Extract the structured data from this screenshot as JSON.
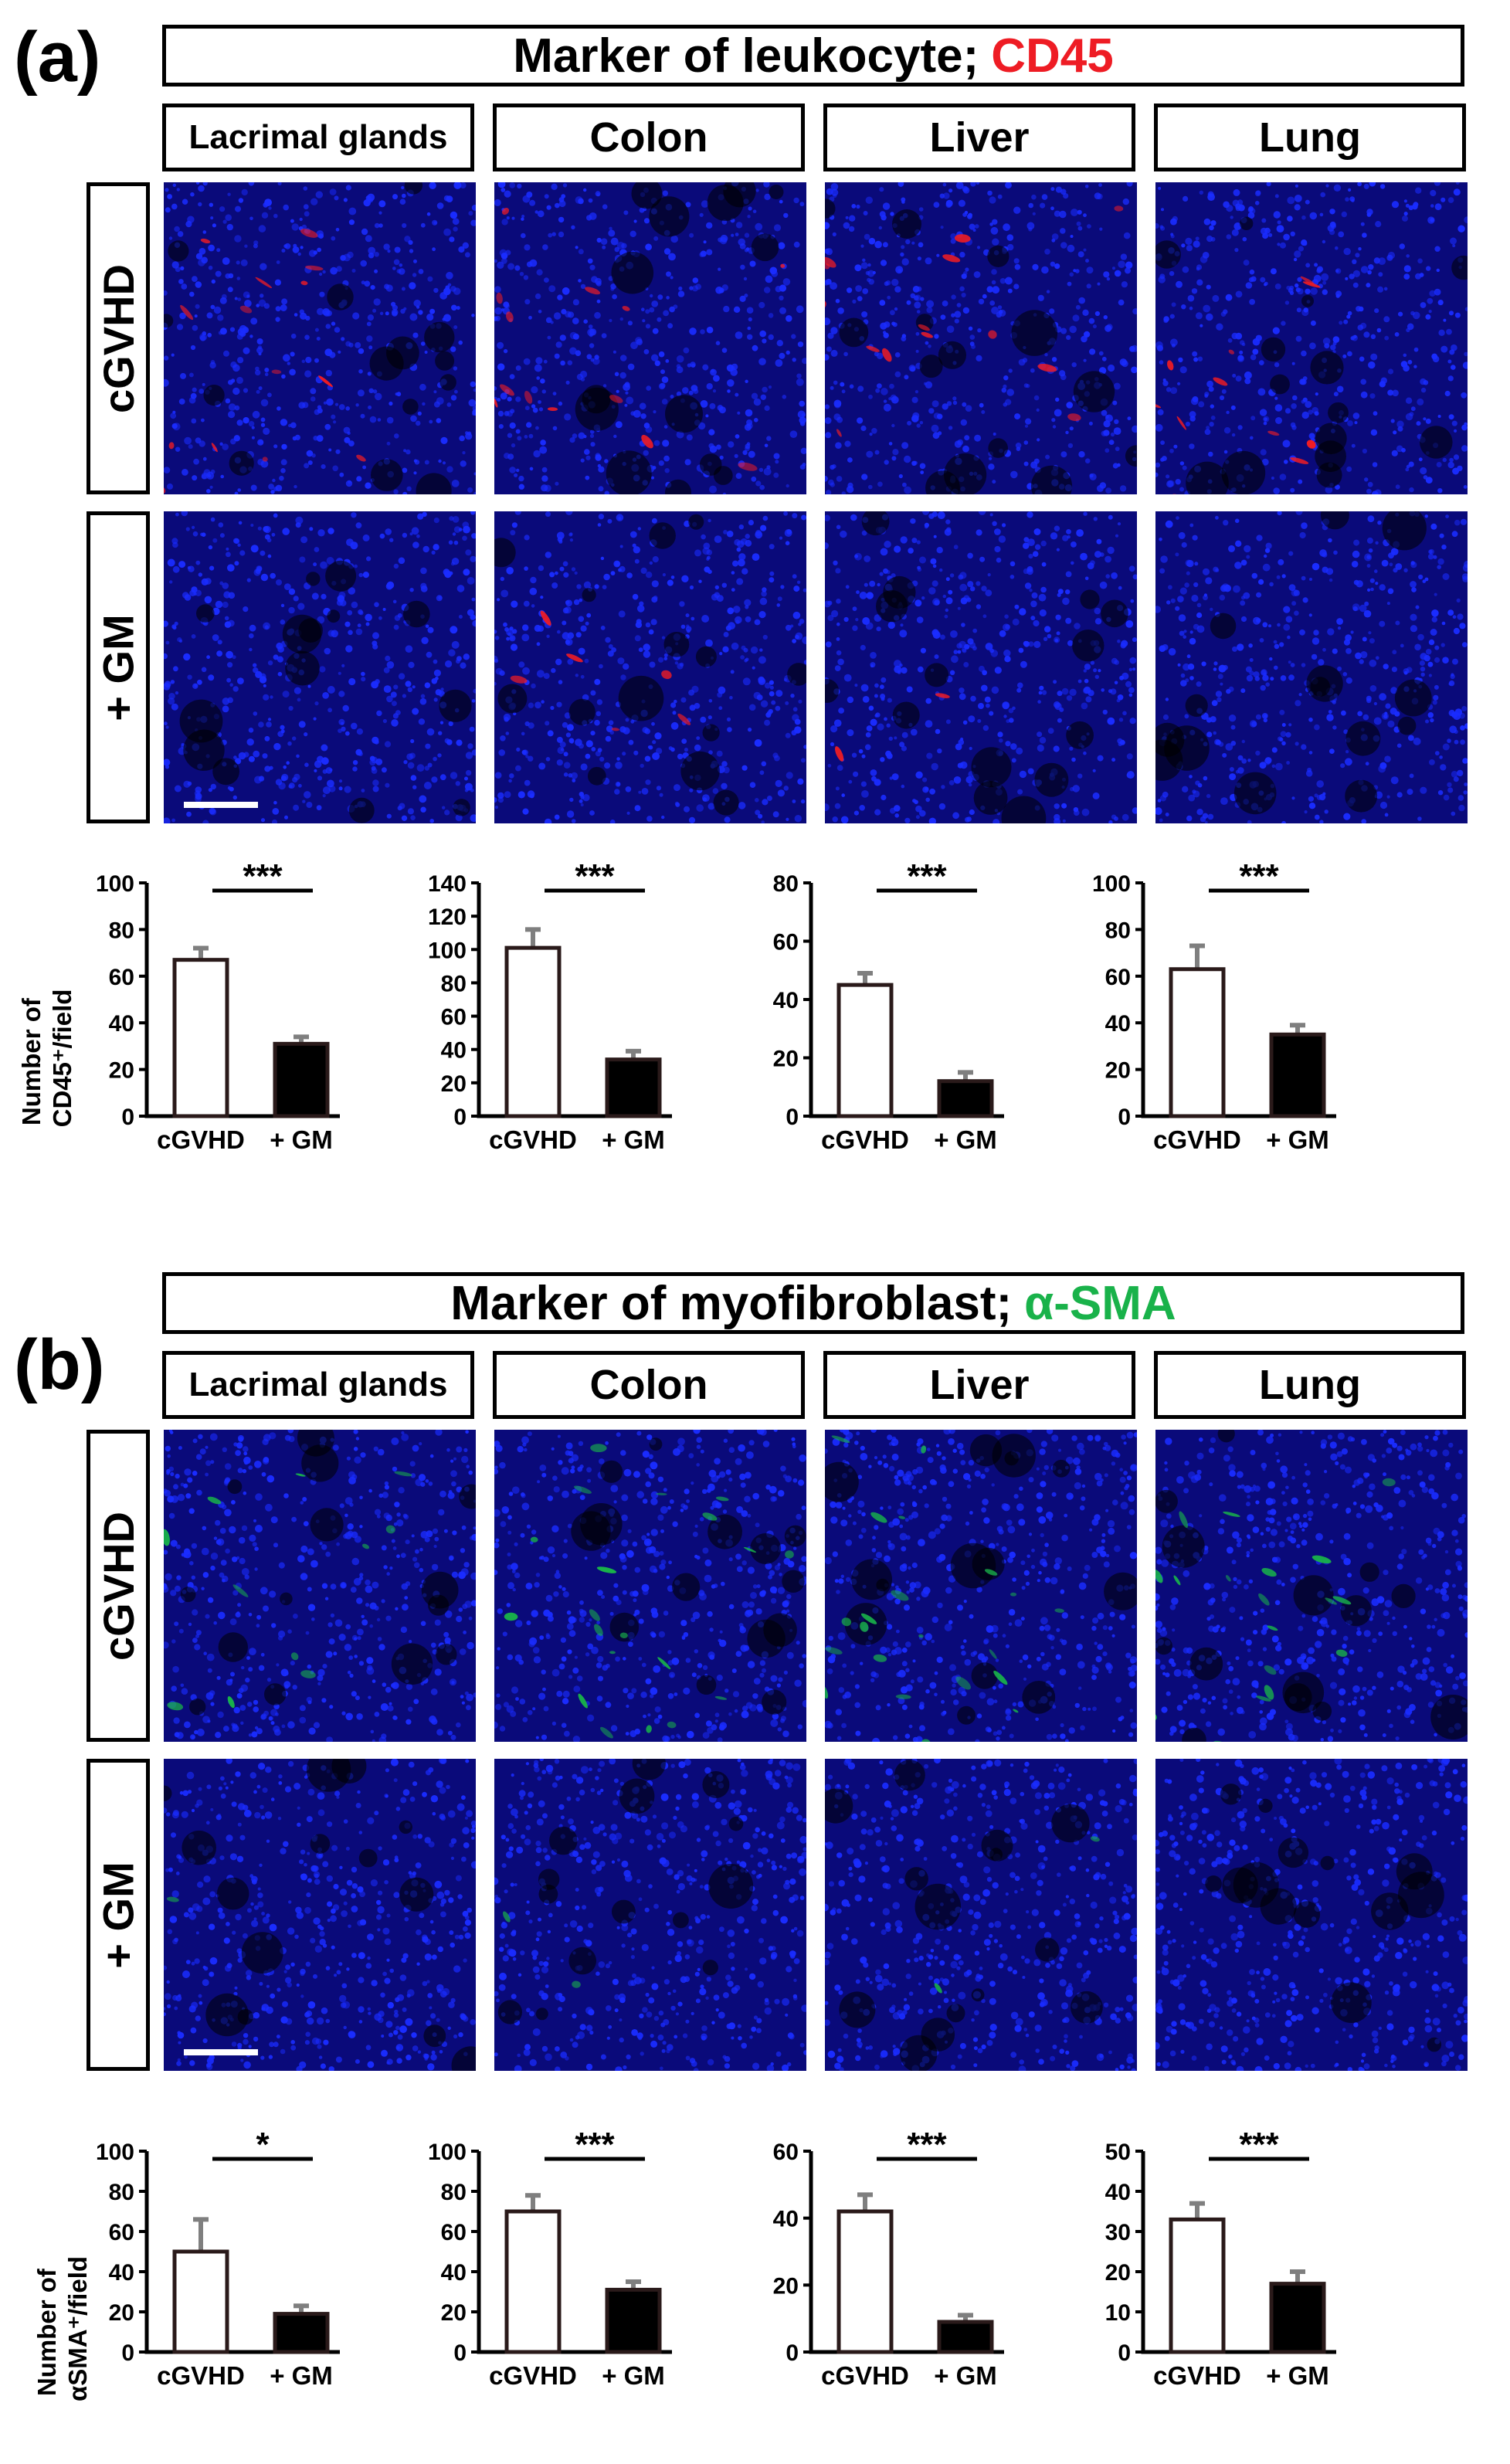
{
  "panels": [
    {
      "label": "(a)",
      "title": "Marker of leukocyte;",
      "marker": "CD45",
      "tissues": [
        "Lacrimal glands",
        "Colon",
        "Liver",
        "Lung"
      ],
      "rows": [
        "cGVHD",
        "+ GM"
      ],
      "ylabel_line1": "Number of",
      "ylabel_line2": "CD45⁺/field"
    },
    {
      "label": "(b)",
      "title": "Marker of myofibroblast;",
      "marker": "α-SMA",
      "tissues": [
        "Lacrimal glands",
        "Colon",
        "Liver",
        "Lung"
      ],
      "rows": [
        "cGVHD",
        "+ GM"
      ],
      "ylabel_line1": "Number of",
      "ylabel_line2": "αSMA⁺/field"
    }
  ],
  "colors": {
    "cd45": "#ee1c24",
    "asma": "#19b24a",
    "nuclei": "#1a2cff"
  },
  "chart_data": [
    {
      "type": "bar",
      "panel": "(a)",
      "tissue": "Lacrimal glands",
      "categories": [
        "cGVHD",
        "+ GM"
      ],
      "values": [
        67,
        31
      ],
      "errors": [
        5,
        3
      ],
      "ylim": [
        0,
        100
      ],
      "yticks": [
        0,
        20,
        40,
        60,
        80,
        100
      ],
      "significance": "***"
    },
    {
      "type": "bar",
      "panel": "(a)",
      "tissue": "Colon",
      "categories": [
        "cGVHD",
        "+ GM"
      ],
      "values": [
        101,
        34
      ],
      "errors": [
        11,
        5
      ],
      "ylim": [
        0,
        140
      ],
      "yticks": [
        0,
        20,
        40,
        60,
        80,
        100,
        120,
        140
      ],
      "significance": "***"
    },
    {
      "type": "bar",
      "panel": "(a)",
      "tissue": "Liver",
      "categories": [
        "cGVHD",
        "+ GM"
      ],
      "values": [
        45,
        12
      ],
      "errors": [
        4,
        3
      ],
      "ylim": [
        0,
        80
      ],
      "yticks": [
        0,
        20,
        40,
        60,
        80
      ],
      "significance": "***"
    },
    {
      "type": "bar",
      "panel": "(a)",
      "tissue": "Lung",
      "categories": [
        "cGVHD",
        "+ GM"
      ],
      "values": [
        63,
        35
      ],
      "errors": [
        10,
        4
      ],
      "ylim": [
        0,
        100
      ],
      "yticks": [
        0,
        20,
        40,
        60,
        80,
        100
      ],
      "significance": "***"
    },
    {
      "type": "bar",
      "panel": "(b)",
      "tissue": "Lacrimal glands",
      "categories": [
        "cGVHD",
        "+ GM"
      ],
      "values": [
        50,
        19
      ],
      "errors": [
        16,
        4
      ],
      "ylim": [
        0,
        100
      ],
      "yticks": [
        0,
        20,
        40,
        60,
        80,
        100
      ],
      "significance": "*"
    },
    {
      "type": "bar",
      "panel": "(b)",
      "tissue": "Colon",
      "categories": [
        "cGVHD",
        "+ GM"
      ],
      "values": [
        70,
        31
      ],
      "errors": [
        8,
        4
      ],
      "ylim": [
        0,
        100
      ],
      "yticks": [
        0,
        20,
        40,
        60,
        80,
        100
      ],
      "significance": "***"
    },
    {
      "type": "bar",
      "panel": "(b)",
      "tissue": "Liver",
      "categories": [
        "cGVHD",
        "+ GM"
      ],
      "values": [
        42,
        9
      ],
      "errors": [
        5,
        2
      ],
      "ylim": [
        0,
        60
      ],
      "yticks": [
        0,
        20,
        40,
        60
      ],
      "significance": "***"
    },
    {
      "type": "bar",
      "panel": "(b)",
      "tissue": "Lung",
      "categories": [
        "cGVHD",
        "+ GM"
      ],
      "values": [
        33,
        17
      ],
      "errors": [
        4,
        3
      ],
      "ylim": [
        0,
        50
      ],
      "yticks": [
        0,
        10,
        20,
        30,
        40,
        50
      ],
      "significance": "***"
    }
  ]
}
